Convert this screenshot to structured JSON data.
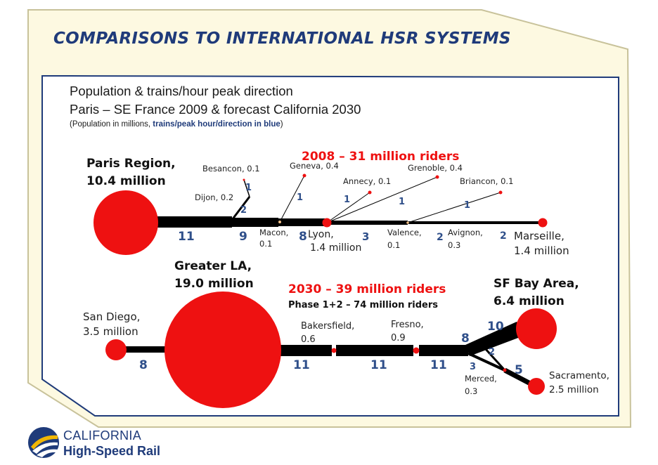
{
  "title": "COMPARISONS TO INTERNATIONAL HSR SYSTEMS",
  "header": {
    "line1": "Population & trains/hour peak direction",
    "line2": "Paris – SE France 2009 & forecast California 2030",
    "note_prefix": "(Population in millions, ",
    "note_blue": "trains/peak hour/direction in blue",
    "note_suffix": ")"
  },
  "france": {
    "riders": "2008 – 31 million riders",
    "paris_name": "Paris Region,",
    "paris_pop": "10.4 million",
    "besancon": "Besancon, 0.1",
    "geneva": "Geneva, 0.4",
    "grenoble": "Grenoble, 0.4",
    "dijon": "Dijon, 0.2",
    "annecy": "Annecy, 0.1",
    "briancon": "Briancon, 0.1",
    "macon_name": "Macon,",
    "macon_pop": "0.1",
    "lyon_name": "Lyon,",
    "lyon_pop": "1.4 million",
    "valence_name": "Valence,",
    "valence_pop": "0.1",
    "avignon_name": "Avignon,",
    "avignon_pop": "0.3",
    "marseille_name": "Marseille,",
    "marseille_pop": "1.4 million",
    "t_paris_dijon": "11",
    "t_dijon_macon": "9",
    "t_macon_lyon": "8",
    "t_lyon_valence": "3",
    "t_valence_avignon": "2",
    "t_avignon_marseille": "2",
    "t_besancon": "1",
    "t_dijon_branch": "2",
    "t_geneva": "1",
    "t_annecy": "1",
    "t_grenoble": "1",
    "t_briancon": "1"
  },
  "california": {
    "riders": "2030 – 39 million riders",
    "phase": "Phase 1+2 – 74 million riders",
    "la_name": "Greater LA,",
    "la_pop": "19.0 million",
    "sd_name": "San Diego,",
    "sd_pop": "3.5 million",
    "bakersfield_name": "Bakersfield,",
    "bakersfield_pop": "0.6",
    "fresno_name": "Fresno,",
    "fresno_pop": "0.9",
    "sf_name": "SF Bay Area,",
    "sf_pop": "6.4 million",
    "merced_name": "Merced,",
    "merced_pop": "0.3",
    "sac_name": "Sacramento,",
    "sac_pop": "2.5 million",
    "t_sd": "8",
    "t_la_bak": "11",
    "t_bak_fre": "11",
    "t_fre_jct": "11",
    "t_jct": "8",
    "t_sf": "10",
    "t_cross": "2",
    "t_merced": "3",
    "t_sac": "5"
  },
  "logo": {
    "line1": "CALIFORNIA",
    "line2": "High-Speed Rail"
  },
  "colors": {
    "title_blue": "#1f3b7a",
    "number_blue": "#2f4f8a",
    "red": "#ee1111",
    "frame_fill": "#fdf9e1",
    "frame_border": "#c8c29a"
  }
}
